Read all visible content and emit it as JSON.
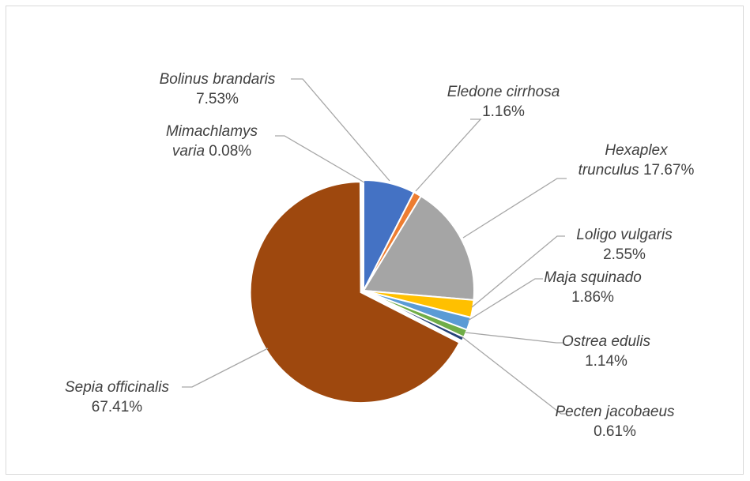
{
  "chart_data": {
    "type": "pie",
    "title": "",
    "slices": [
      {
        "label": "Bolinus brandaris",
        "value": 7.53,
        "percent_label": "7.53%",
        "color": "#4472c4"
      },
      {
        "label": "Eledone cirrhosa",
        "value": 1.16,
        "percent_label": "1.16%",
        "color": "#ed7d31"
      },
      {
        "label": "Hexaplex trunculus",
        "value": 17.67,
        "percent_label": "17.67%",
        "color": "#a5a5a5"
      },
      {
        "label": "Loligo vulgaris",
        "value": 2.55,
        "percent_label": "2.55%",
        "color": "#ffc000"
      },
      {
        "label": "Maja squinado",
        "value": 1.86,
        "percent_label": "1.86%",
        "color": "#5b9bd5"
      },
      {
        "label": "Ostrea edulis",
        "value": 1.14,
        "percent_label": "1.14%",
        "color": "#70ad47"
      },
      {
        "label": "Pecten jacobaeus",
        "value": 0.61,
        "percent_label": "0.61%",
        "color": "#264478"
      },
      {
        "label": "Sepia officinalis",
        "value": 67.41,
        "percent_label": "67.41%",
        "color": "#9e480e"
      },
      {
        "label": "Mimachlamys varia",
        "value": 0.08,
        "percent_label": "0.08%",
        "color": "#636363"
      }
    ],
    "legend": "none",
    "leader_line_color": "#a6a6a6"
  }
}
